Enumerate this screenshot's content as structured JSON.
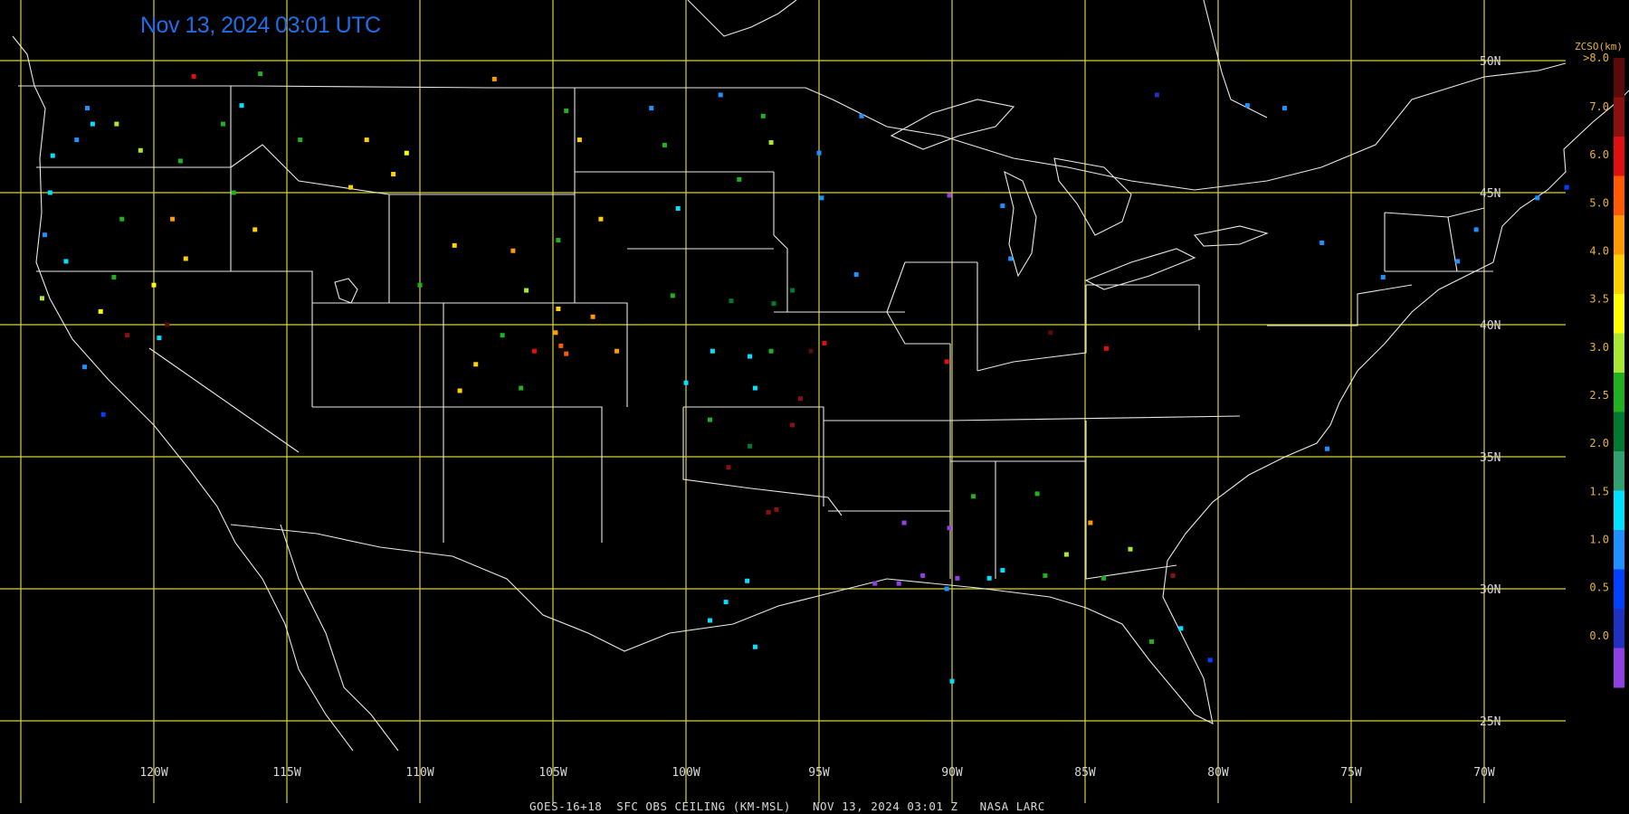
{
  "title": "Nov 13, 2024 03:01 UTC",
  "footer": "GOES-16+18  SFC OBS CEILING (KM-MSL)   NOV 13, 2024 03:01 Z   NASA LARC",
  "lon_labels": [
    "120W",
    "115W",
    "110W",
    "105W",
    "100W",
    "95W",
    "90W",
    "85W",
    "80W",
    "75W",
    "70W"
  ],
  "lat_labels": [
    "50N",
    "45N",
    "40N",
    "35N",
    "30N",
    "25N"
  ],
  "colorbar": {
    "title": "ZCSO(km)",
    "labels": [
      ">8.0",
      "7.0",
      "6.0",
      "5.0",
      "4.0",
      "3.5",
      "3.0",
      "2.5",
      "2.0",
      "1.5",
      "1.0",
      "0.5",
      "0.0"
    ],
    "colors": [
      "#5a0a0a",
      "#8b1010",
      "#e01010",
      "#ff5a00",
      "#ff9a00",
      "#ffd000",
      "#ffff00",
      "#a8e830",
      "#20b020",
      "#007a30",
      "#30a070",
      "#00e0ff",
      "#1e90ff",
      "#0040ff",
      "#2030c0",
      "#9040e0"
    ]
  },
  "stations": [
    {
      "lon": -122.5,
      "lat": 48.2,
      "c": "#1e90ff"
    },
    {
      "lon": -122.3,
      "lat": 47.6,
      "c": "#00e0ff"
    },
    {
      "lon": -122.9,
      "lat": 47.0,
      "c": "#1e90ff"
    },
    {
      "lon": -123.8,
      "lat": 46.4,
      "c": "#00e0ff"
    },
    {
      "lon": -123.9,
      "lat": 45.0,
      "c": "#00e0ff"
    },
    {
      "lon": -124.1,
      "lat": 43.4,
      "c": "#1e90ff"
    },
    {
      "lon": -123.3,
      "lat": 42.4,
      "c": "#00e0ff"
    },
    {
      "lon": -124.2,
      "lat": 41.0,
      "c": "#a8e830"
    },
    {
      "lon": -121.4,
      "lat": 47.6,
      "c": "#a8e830"
    },
    {
      "lon": -120.5,
      "lat": 46.6,
      "c": "#a8e830"
    },
    {
      "lon": -119.0,
      "lat": 46.2,
      "c": "#20b020"
    },
    {
      "lon": -117.4,
      "lat": 47.6,
      "c": "#20b020"
    },
    {
      "lon": -118.5,
      "lat": 49.4,
      "c": "#e01010"
    },
    {
      "lon": -116.0,
      "lat": 49.5,
      "c": "#20b020"
    },
    {
      "lon": -116.7,
      "lat": 48.3,
      "c": "#00e0ff"
    },
    {
      "lon": -114.5,
      "lat": 47.0,
      "c": "#20b020"
    },
    {
      "lon": -112.0,
      "lat": 47.0,
      "c": "#ffd000"
    },
    {
      "lon": -111.0,
      "lat": 45.7,
      "c": "#ffd000"
    },
    {
      "lon": -110.5,
      "lat": 46.5,
      "c": "#ffff00"
    },
    {
      "lon": -112.6,
      "lat": 45.2,
      "c": "#ffd000"
    },
    {
      "lon": -116.2,
      "lat": 43.6,
      "c": "#ffd000"
    },
    {
      "lon": -117.0,
      "lat": 45.0,
      "c": "#20b020"
    },
    {
      "lon": -119.3,
      "lat": 44.0,
      "c": "#ff9a00"
    },
    {
      "lon": -121.2,
      "lat": 44.0,
      "c": "#20b020"
    },
    {
      "lon": -118.8,
      "lat": 42.5,
      "c": "#ffd000"
    },
    {
      "lon": -120.0,
      "lat": 41.5,
      "c": "#ffff00"
    },
    {
      "lon": -121.5,
      "lat": 41.8,
      "c": "#20b020"
    },
    {
      "lon": -122.0,
      "lat": 40.5,
      "c": "#ffff00"
    },
    {
      "lon": -119.5,
      "lat": 40.0,
      "c": "#5a0a0a"
    },
    {
      "lon": -121.0,
      "lat": 39.6,
      "c": "#8b1010"
    },
    {
      "lon": -119.8,
      "lat": 39.5,
      "c": "#00e0ff"
    },
    {
      "lon": -122.6,
      "lat": 38.4,
      "c": "#1e90ff"
    },
    {
      "lon": -121.9,
      "lat": 36.6,
      "c": "#0040ff"
    },
    {
      "lon": -107.2,
      "lat": 49.3,
      "c": "#ff9a00"
    },
    {
      "lon": -104.5,
      "lat": 48.1,
      "c": "#20b020"
    },
    {
      "lon": -104.0,
      "lat": 47.0,
      "c": "#ffd000"
    },
    {
      "lon": -101.3,
      "lat": 48.2,
      "c": "#1e90ff"
    },
    {
      "lon": -100.8,
      "lat": 46.8,
      "c": "#20b020"
    },
    {
      "lon": -98.7,
      "lat": 48.7,
      "c": "#1e90ff"
    },
    {
      "lon": -97.1,
      "lat": 47.9,
      "c": "#20b020"
    },
    {
      "lon": -96.8,
      "lat": 46.9,
      "c": "#a8e830"
    },
    {
      "lon": -98.0,
      "lat": 45.5,
      "c": "#20b020"
    },
    {
      "lon": -100.3,
      "lat": 44.4,
      "c": "#00e0ff"
    },
    {
      "lon": -103.2,
      "lat": 44.0,
      "c": "#ffd000"
    },
    {
      "lon": -104.8,
      "lat": 43.2,
      "c": "#20b020"
    },
    {
      "lon": -106.5,
      "lat": 42.8,
      "c": "#ff9a00"
    },
    {
      "lon": -108.7,
      "lat": 43.0,
      "c": "#ffd000"
    },
    {
      "lon": -110.0,
      "lat": 41.5,
      "c": "#20b020"
    },
    {
      "lon": -106.0,
      "lat": 41.3,
      "c": "#a8e830"
    },
    {
      "lon": -104.8,
      "lat": 40.6,
      "c": "#ffd000"
    },
    {
      "lon": -104.9,
      "lat": 39.7,
      "c": "#ff9a00"
    },
    {
      "lon": -104.7,
      "lat": 39.2,
      "c": "#ff5a00"
    },
    {
      "lon": -104.5,
      "lat": 38.9,
      "c": "#ff5a00"
    },
    {
      "lon": -105.7,
      "lat": 39.0,
      "c": "#e01010"
    },
    {
      "lon": -106.9,
      "lat": 39.6,
      "c": "#20b020"
    },
    {
      "lon": -107.9,
      "lat": 38.5,
      "c": "#ffd000"
    },
    {
      "lon": -108.5,
      "lat": 37.5,
      "c": "#ffd000"
    },
    {
      "lon": -106.2,
      "lat": 37.6,
      "c": "#20b020"
    },
    {
      "lon": -103.5,
      "lat": 40.3,
      "c": "#ff9a00"
    },
    {
      "lon": -102.6,
      "lat": 39.0,
      "c": "#ff9a00"
    },
    {
      "lon": -100.5,
      "lat": 41.1,
      "c": "#20b020"
    },
    {
      "lon": -98.3,
      "lat": 40.9,
      "c": "#007a30"
    },
    {
      "lon": -96.7,
      "lat": 40.8,
      "c": "#007a30"
    },
    {
      "lon": -96.0,
      "lat": 41.3,
      "c": "#007a30"
    },
    {
      "lon": -99.0,
      "lat": 39.0,
      "c": "#00e0ff"
    },
    {
      "lon": -97.6,
      "lat": 38.8,
      "c": "#00e0ff"
    },
    {
      "lon": -97.4,
      "lat": 37.6,
      "c": "#00e0ff"
    },
    {
      "lon": -100.0,
      "lat": 37.8,
      "c": "#00e0ff"
    },
    {
      "lon": -96.8,
      "lat": 39.0,
      "c": "#20b020"
    },
    {
      "lon": -95.7,
      "lat": 37.2,
      "c": "#8b1010"
    },
    {
      "lon": -97.6,
      "lat": 35.4,
      "c": "#007a30"
    },
    {
      "lon": -98.4,
      "lat": 34.6,
      "c": "#8b1010"
    },
    {
      "lon": -99.1,
      "lat": 36.4,
      "c": "#20b020"
    },
    {
      "lon": -96.0,
      "lat": 36.2,
      "c": "#8b1010"
    },
    {
      "lon": -95.3,
      "lat": 39.0,
      "c": "#5a0a0a"
    },
    {
      "lon": -93.6,
      "lat": 41.9,
      "c": "#1e90ff"
    },
    {
      "lon": -94.9,
      "lat": 44.8,
      "c": "#1e90ff"
    },
    {
      "lon": -95.0,
      "lat": 46.5,
      "c": "#1e90ff"
    },
    {
      "lon": -93.4,
      "lat": 47.9,
      "c": "#1e90ff"
    },
    {
      "lon": -90.1,
      "lat": 44.9,
      "c": "#9040e0"
    },
    {
      "lon": -88.1,
      "lat": 44.5,
      "c": "#1e90ff"
    },
    {
      "lon": -87.8,
      "lat": 42.5,
      "c": "#1e90ff"
    },
    {
      "lon": -90.2,
      "lat": 38.6,
      "c": "#e01010"
    },
    {
      "lon": -86.3,
      "lat": 39.7,
      "c": "#5a0a0a"
    },
    {
      "lon": -84.2,
      "lat": 39.1,
      "c": "#e01010"
    },
    {
      "lon": -94.8,
      "lat": 39.3,
      "c": "#e01010"
    },
    {
      "lon": -98.5,
      "lat": 29.5,
      "c": "#00e0ff"
    },
    {
      "lon": -97.7,
      "lat": 30.3,
      "c": "#00e0ff"
    },
    {
      "lon": -99.1,
      "lat": 28.8,
      "c": "#00e0ff"
    },
    {
      "lon": -97.4,
      "lat": 27.8,
      "c": "#00e0ff"
    },
    {
      "lon": -96.6,
      "lat": 33.0,
      "c": "#8b1010"
    },
    {
      "lon": -96.9,
      "lat": 32.9,
      "c": "#8b1010"
    },
    {
      "lon": -92.9,
      "lat": 30.2,
      "c": "#9040e0"
    },
    {
      "lon": -92.0,
      "lat": 30.2,
      "c": "#9040e0"
    },
    {
      "lon": -91.1,
      "lat": 30.5,
      "c": "#9040e0"
    },
    {
      "lon": -90.2,
      "lat": 30.0,
      "c": "#1e90ff"
    },
    {
      "lon": -89.8,
      "lat": 30.4,
      "c": "#9040e0"
    },
    {
      "lon": -91.8,
      "lat": 32.5,
      "c": "#9040e0"
    },
    {
      "lon": -90.1,
      "lat": 32.3,
      "c": "#9040e0"
    },
    {
      "lon": -89.2,
      "lat": 33.5,
      "c": "#20b020"
    },
    {
      "lon": -88.6,
      "lat": 30.4,
      "c": "#00e0ff"
    },
    {
      "lon": -88.1,
      "lat": 30.7,
      "c": "#00e0ff"
    },
    {
      "lon": -86.5,
      "lat": 30.5,
      "c": "#20b020"
    },
    {
      "lon": -85.7,
      "lat": 31.3,
      "c": "#a8e830"
    },
    {
      "lon": -84.3,
      "lat": 30.4,
      "c": "#20b020"
    },
    {
      "lon": -83.3,
      "lat": 31.5,
      "c": "#a8e830"
    },
    {
      "lon": -84.8,
      "lat": 32.5,
      "c": "#ff9a00"
    },
    {
      "lon": -86.8,
      "lat": 33.6,
      "c": "#20b020"
    },
    {
      "lon": -81.7,
      "lat": 30.5,
      "c": "#8b1010"
    },
    {
      "lon": -81.4,
      "lat": 28.5,
      "c": "#00e0ff"
    },
    {
      "lon": -80.3,
      "lat": 27.3,
      "c": "#0040ff"
    },
    {
      "lon": -82.5,
      "lat": 28.0,
      "c": "#20b020"
    },
    {
      "lon": -90.0,
      "lat": 26.5,
      "c": "#00e0ff"
    },
    {
      "lon": -75.9,
      "lat": 35.3,
      "c": "#1e90ff"
    },
    {
      "lon": -73.8,
      "lat": 41.8,
      "c": "#1e90ff"
    },
    {
      "lon": -71.0,
      "lat": 42.4,
      "c": "#1e90ff"
    },
    {
      "lon": -70.3,
      "lat": 43.6,
      "c": "#1e90ff"
    },
    {
      "lon": -68.0,
      "lat": 44.8,
      "c": "#1e90ff"
    },
    {
      "lon": -76.1,
      "lat": 43.1,
      "c": "#1e90ff"
    },
    {
      "lon": -78.9,
      "lat": 48.3,
      "c": "#1e90ff"
    },
    {
      "lon": -77.5,
      "lat": 48.2,
      "c": "#1e90ff"
    },
    {
      "lon": -82.3,
      "lat": 48.7,
      "c": "#2030c0"
    },
    {
      "lon": -66.9,
      "lat": 45.2,
      "c": "#0040ff"
    }
  ]
}
